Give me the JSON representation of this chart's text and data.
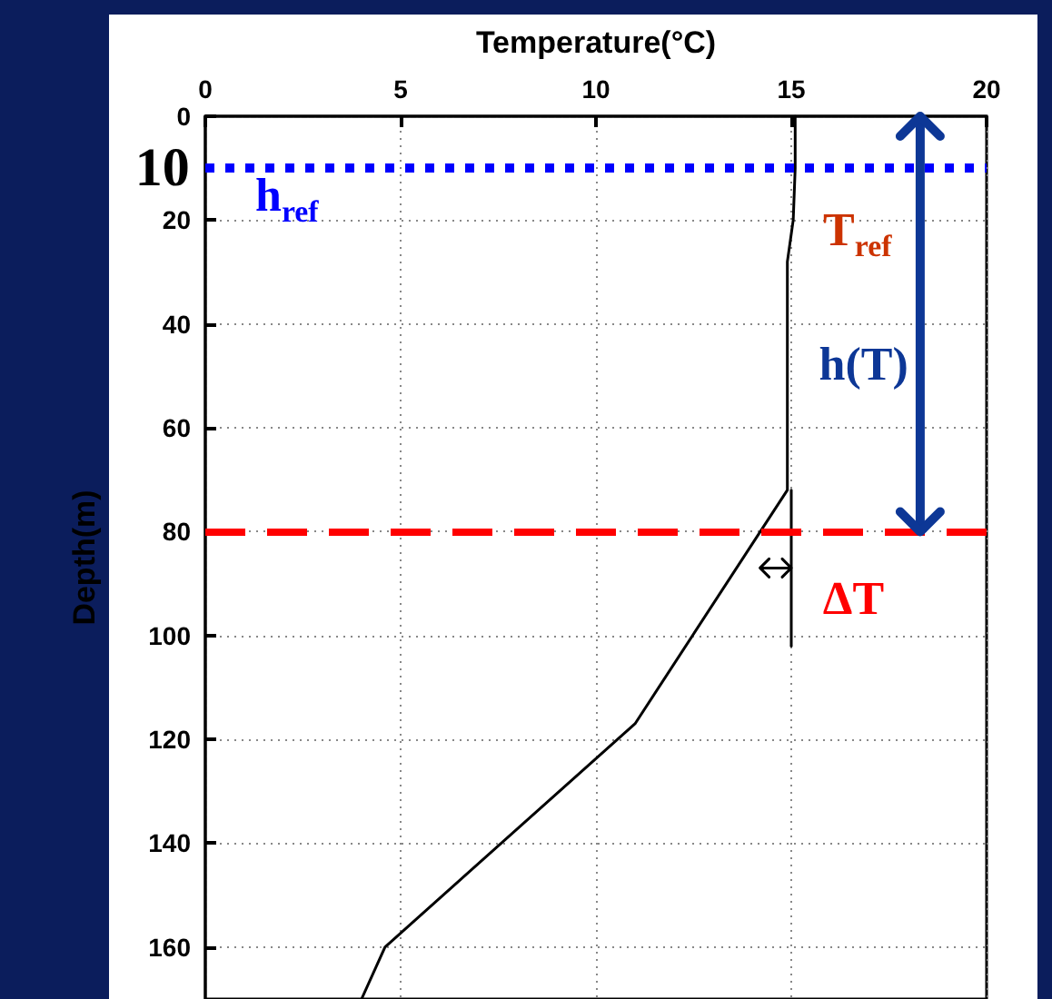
{
  "chart_data": {
    "type": "line",
    "xlabel": "Temperature(°C)",
    "ylabel": "Depth(m)",
    "xlim": [
      0,
      20
    ],
    "xticks": [
      0,
      5,
      10,
      15,
      20
    ],
    "ylim": [
      170,
      0
    ],
    "yticks": [
      0,
      20,
      40,
      60,
      80,
      100,
      120,
      140,
      160
    ],
    "grid": true,
    "marker": "none",
    "line_style": "solid",
    "series": [
      {
        "color": "#000000",
        "x": [
          15.1,
          15.1,
          15.05,
          14.9,
          14.9,
          14.9,
          11.0,
          4.6,
          4.0
        ],
        "values": [
          0,
          10,
          20,
          28,
          60,
          72,
          117,
          160,
          170
        ]
      },
      {
        "color": "#000000",
        "x": [
          15.0,
          15.0
        ],
        "values": [
          72,
          102
        ]
      }
    ],
    "ref_lines": [
      {
        "axis": "y",
        "value": 10,
        "label": "h$_{ref}$",
        "color": "#0000ff",
        "line_style": "dotted"
      },
      {
        "axis": "y",
        "value": 80,
        "color": "#ff0000",
        "line_style": "dashed"
      }
    ],
    "annotations": [
      "10",
      "T$_{ref}$",
      "h(T)",
      "ΔT"
    ]
  }
}
